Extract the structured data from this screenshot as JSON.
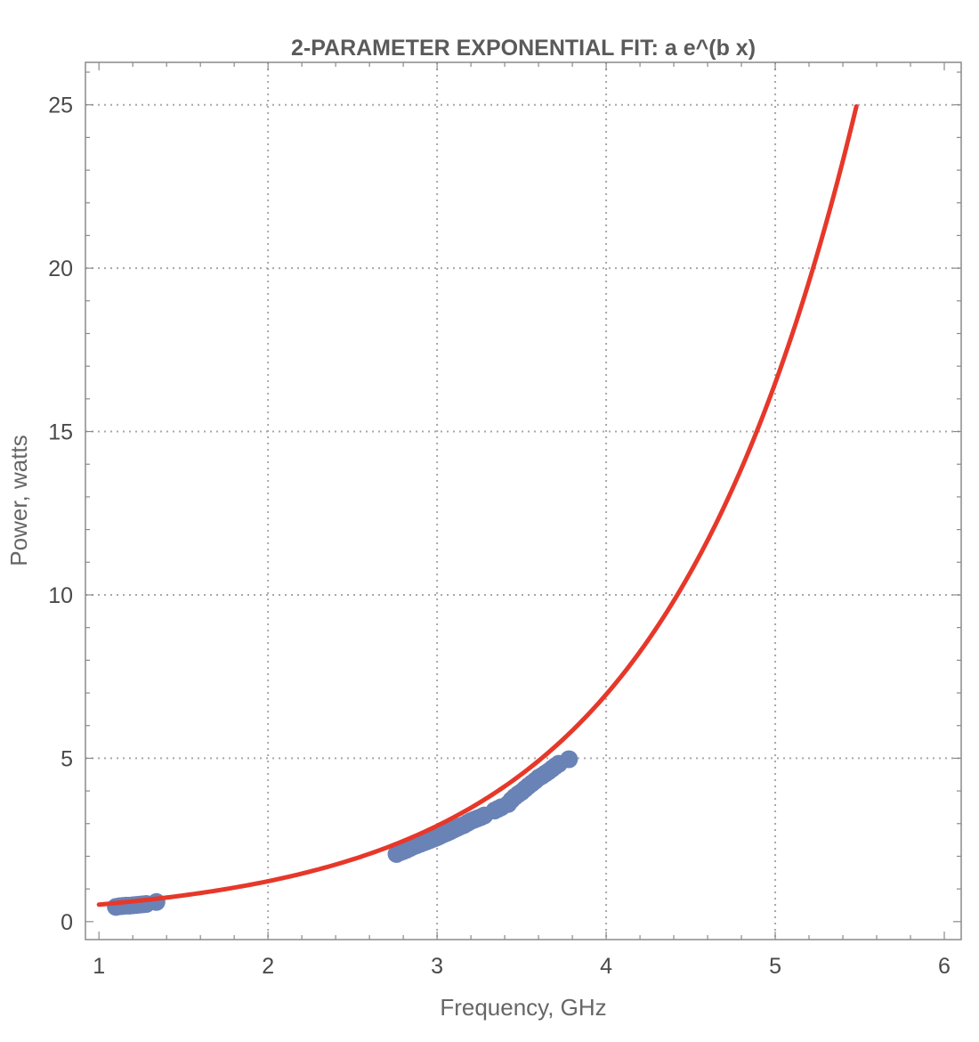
{
  "chart_data": {
    "type": "scatter",
    "title": "2-PARAMETER EXPONENTIAL FIT: a e^(b x)",
    "xlabel": "Frequency, GHz",
    "ylabel": "Power, watts",
    "xlim": [
      0.92,
      6.1
    ],
    "ylim": [
      -0.55,
      26.3
    ],
    "x_ticks": [
      1,
      2,
      3,
      4,
      5,
      6
    ],
    "y_ticks": [
      0,
      5,
      10,
      15,
      20,
      25
    ],
    "grid": true,
    "grid_x": [
      2,
      3,
      4,
      5
    ],
    "grid_y": [
      5,
      10,
      15,
      20,
      25
    ],
    "legend": "none",
    "colors": {
      "points": "#6a83b6",
      "fit": "#e6382a",
      "grid": "#a8a8a8",
      "frame": "#8a8a8a"
    },
    "series": [
      {
        "kind": "points",
        "x": [
          1.1,
          1.12,
          1.14,
          1.16,
          1.18,
          1.2,
          1.22,
          1.24,
          1.26,
          1.28,
          1.34,
          2.76,
          2.78,
          2.8,
          2.82,
          2.84,
          2.86,
          2.88,
          2.9,
          2.92,
          2.94,
          2.96,
          2.98,
          3.0,
          3.02,
          3.04,
          3.06,
          3.08,
          3.1,
          3.12,
          3.14,
          3.16,
          3.18,
          3.2,
          3.22,
          3.24,
          3.26,
          3.28,
          3.34,
          3.36,
          3.38,
          3.42,
          3.44,
          3.46,
          3.48,
          3.5,
          3.52,
          3.54,
          3.56,
          3.58,
          3.6,
          3.62,
          3.64,
          3.66,
          3.68,
          3.7,
          3.72,
          3.78
        ],
        "y": [
          0.45,
          0.47,
          0.48,
          0.49,
          0.49,
          0.5,
          0.51,
          0.52,
          0.53,
          0.54,
          0.6,
          2.07,
          2.12,
          2.16,
          2.2,
          2.25,
          2.3,
          2.34,
          2.38,
          2.42,
          2.46,
          2.5,
          2.54,
          2.58,
          2.63,
          2.68,
          2.72,
          2.77,
          2.82,
          2.87,
          2.92,
          2.96,
          3.02,
          3.08,
          3.12,
          3.16,
          3.2,
          3.25,
          3.4,
          3.45,
          3.5,
          3.6,
          3.72,
          3.82,
          3.9,
          3.97,
          4.06,
          4.15,
          4.23,
          4.31,
          4.4,
          4.46,
          4.53,
          4.6,
          4.68,
          4.76,
          4.83,
          4.97
        ]
      },
      {
        "kind": "fit",
        "x_range": [
          1.0,
          5.48
        ],
        "a": 0.2198,
        "b": 0.8635
      }
    ]
  }
}
